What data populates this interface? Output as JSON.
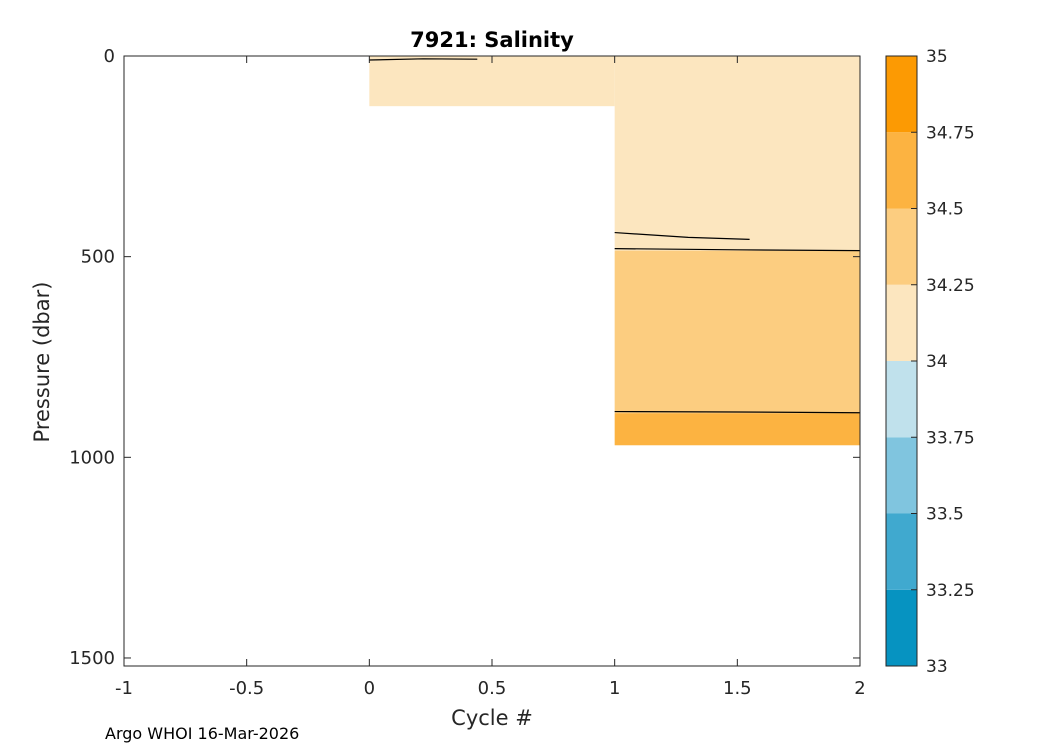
{
  "chart_data": {
    "type": "heatmap",
    "title": "7921:  Salinity",
    "xlabel": "Cycle #",
    "ylabel": "Pressure (dbar)",
    "xlim": [
      -1,
      2
    ],
    "ylim": [
      0,
      1520
    ],
    "y_reversed": true,
    "x_ticks": [
      -1,
      -0.5,
      0,
      0.5,
      1,
      1.5,
      2
    ],
    "x_tick_labels": [
      "-1",
      "-0.5",
      "0",
      "0.5",
      "1",
      "1.5",
      "2"
    ],
    "y_ticks": [
      0,
      500,
      1000,
      1500
    ],
    "y_tick_labels": [
      "0",
      "500",
      "1000",
      "1500"
    ],
    "colorbar": {
      "levels": [
        33,
        33.25,
        33.5,
        33.75,
        34,
        34.25,
        34.5,
        34.75,
        35
      ],
      "labels": [
        "33",
        "33.25",
        "33.5",
        "33.75",
        "34",
        "34.25",
        "34.5",
        "34.75",
        "35"
      ],
      "colors": [
        "#0693C1",
        "#40A9CF",
        "#80C5DF",
        "#C0E1EC",
        "#FCE6BF",
        "#FCCD80",
        "#FCB341",
        "#FC9A03"
      ]
    },
    "cells": [
      {
        "x0": 0,
        "x1": 1,
        "p0": 0,
        "p1": 125,
        "salinity_band": [
          34,
          34.25
        ]
      },
      {
        "x0": 1,
        "x1": 2,
        "p0": 0,
        "p1": 485,
        "salinity_band": [
          34,
          34.25
        ]
      },
      {
        "x0": 1,
        "x1": 2,
        "p0": 485,
        "p1": 890,
        "salinity_band": [
          34.25,
          34.5
        ]
      },
      {
        "x0": 1,
        "x1": 2,
        "p0": 890,
        "p1": 970,
        "salinity_band": [
          34.5,
          34.75
        ]
      }
    ],
    "contours": [
      {
        "points": [
          [
            0,
            10
          ],
          [
            0.22,
            7
          ],
          [
            0.44,
            8
          ]
        ]
      },
      {
        "points": [
          [
            1,
            440
          ],
          [
            1.3,
            452
          ],
          [
            1.55,
            457
          ]
        ]
      },
      {
        "points": [
          [
            1,
            480
          ],
          [
            1.5,
            483
          ],
          [
            2,
            485
          ]
        ]
      },
      {
        "points": [
          [
            1,
            886
          ],
          [
            1.5,
            887
          ],
          [
            2,
            889
          ]
        ]
      }
    ],
    "grid": false
  },
  "footer": "Argo WHOI 16-Mar-2026"
}
